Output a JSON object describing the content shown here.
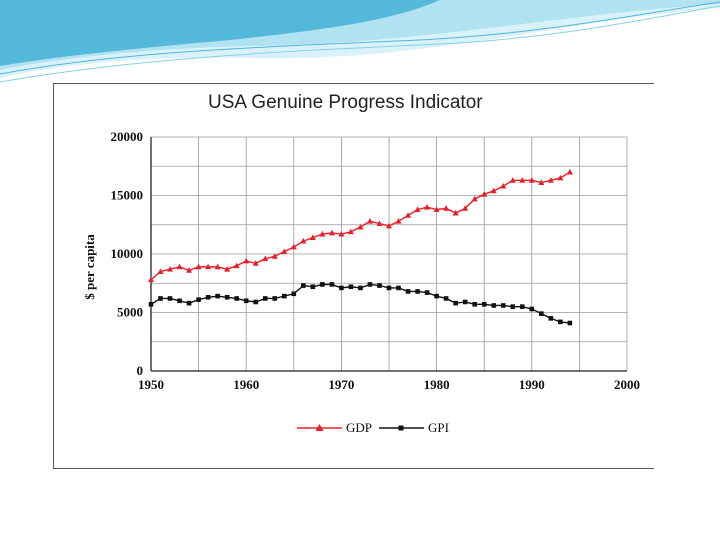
{
  "colors": {
    "gdp": "#e8202a",
    "gpi": "#111111",
    "swoosh_light": "#cfeef8",
    "swoosh_dark": "#2a9ec9"
  },
  "chart_data": {
    "type": "line",
    "title": "USA Genuine Progress Indicator",
    "xlabel": "",
    "ylabel": "$ per capita",
    "xlim": [
      1950,
      2000
    ],
    "ylim": [
      0,
      20000
    ],
    "x_ticks": [
      "1950",
      "1960",
      "1970",
      "1980",
      "1990",
      "2000"
    ],
    "y_ticks": [
      "0",
      "5000",
      "10000",
      "15000",
      "20000"
    ],
    "grid": true,
    "legend_position": "bottom-center",
    "x": [
      1950,
      1951,
      1952,
      1953,
      1954,
      1955,
      1956,
      1957,
      1958,
      1959,
      1960,
      1961,
      1962,
      1963,
      1964,
      1965,
      1966,
      1967,
      1968,
      1969,
      1970,
      1971,
      1972,
      1973,
      1974,
      1975,
      1976,
      1977,
      1978,
      1979,
      1980,
      1981,
      1982,
      1983,
      1984,
      1985,
      1986,
      1987,
      1988,
      1989,
      1990,
      1991,
      1992,
      1993,
      1994
    ],
    "series": [
      {
        "name": "GDP",
        "marker": "triangle",
        "values": [
          7800,
          8500,
          8700,
          8900,
          8600,
          8900,
          8900,
          8900,
          8700,
          9000,
          9400,
          9200,
          9600,
          9800,
          10200,
          10600,
          11100,
          11400,
          11700,
          11800,
          11700,
          11900,
          12300,
          12800,
          12600,
          12400,
          12800,
          13300,
          13800,
          14000,
          13800,
          13900,
          13500,
          13900,
          14700,
          15100,
          15400,
          15800,
          16300,
          16300,
          16300,
          16100,
          16300,
          16500,
          17000
        ]
      },
      {
        "name": "GPI",
        "marker": "square",
        "values": [
          5700,
          6200,
          6200,
          6000,
          5800,
          6100,
          6300,
          6400,
          6300,
          6200,
          6000,
          5900,
          6200,
          6200,
          6400,
          6600,
          7300,
          7200,
          7400,
          7400,
          7100,
          7200,
          7100,
          7400,
          7300,
          7100,
          7100,
          6800,
          6800,
          6700,
          6400,
          6200,
          5800,
          5900,
          5700,
          5700,
          5600,
          5600,
          5500,
          5500,
          5300,
          4900,
          4500,
          4200,
          4100
        ]
      }
    ]
  }
}
